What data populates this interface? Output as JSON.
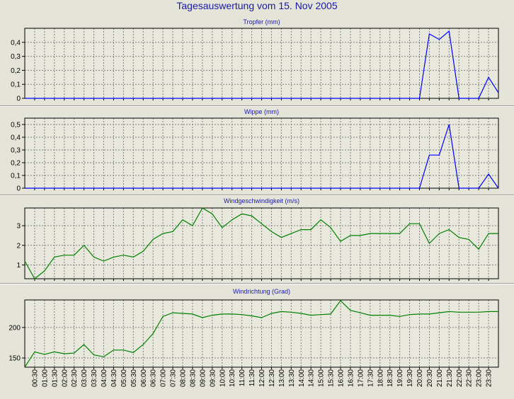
{
  "title": "Tagesauswertung vom 15. Nov 2005",
  "x_ticks": [
    "00:30",
    "01:00",
    "01:30",
    "02:00",
    "02:30",
    "03:00",
    "03:30",
    "04:00",
    "04:30",
    "05:00",
    "05:30",
    "06:00",
    "06:30",
    "07:00",
    "07:30",
    "08:00",
    "08:30",
    "09:00",
    "09:30",
    "10:00",
    "10:30",
    "11:00",
    "11:30",
    "12:00",
    "12:30",
    "13:00",
    "13:30",
    "14:00",
    "14:30",
    "15:00",
    "15:30",
    "16:00",
    "16:30",
    "17:00",
    "17:30",
    "18:00",
    "18:30",
    "19:00",
    "19:30",
    "20:00",
    "20:30",
    "21:00",
    "21:30",
    "22:00",
    "22:30",
    "23:00",
    "23:30"
  ],
  "chart_data": [
    {
      "type": "line",
      "title": "Tropfer (mm)",
      "color": "#0000ff",
      "ylim": [
        0,
        0.5
      ],
      "yticks": [
        0,
        0.1,
        0.2,
        0.3,
        0.4
      ],
      "ytick_labels": [
        "0",
        "0,1",
        "0,2",
        "0,3",
        "0,4"
      ],
      "x": [
        "00:00",
        "00:30",
        "01:00",
        "01:30",
        "02:00",
        "02:30",
        "03:00",
        "03:30",
        "04:00",
        "04:30",
        "05:00",
        "05:30",
        "06:00",
        "06:30",
        "07:00",
        "07:30",
        "08:00",
        "08:30",
        "09:00",
        "09:30",
        "10:00",
        "10:30",
        "11:00",
        "11:30",
        "12:00",
        "12:30",
        "13:00",
        "13:30",
        "14:00",
        "14:30",
        "15:00",
        "15:30",
        "16:00",
        "16:30",
        "17:00",
        "17:30",
        "18:00",
        "18:30",
        "19:00",
        "19:30",
        "20:00",
        "20:30",
        "21:00",
        "21:30",
        "22:00",
        "22:30",
        "23:00",
        "23:30",
        "24:00"
      ],
      "values": [
        0,
        0,
        0,
        0,
        0,
        0,
        0,
        0,
        0,
        0,
        0,
        0,
        0,
        0,
        0,
        0,
        0,
        0,
        0,
        0,
        0,
        0,
        0,
        0,
        0,
        0,
        0,
        0,
        0,
        0,
        0,
        0,
        0,
        0,
        0,
        0,
        0,
        0,
        0,
        0,
        0,
        0.46,
        0.42,
        0.48,
        0,
        0,
        0,
        0.15,
        0.04
      ]
    },
    {
      "type": "line",
      "title": "Wippe (mm)",
      "color": "#0000ff",
      "ylim": [
        0,
        0.55
      ],
      "yticks": [
        0,
        0.1,
        0.2,
        0.3,
        0.4,
        0.5
      ],
      "ytick_labels": [
        "0",
        "0,1",
        "0,2",
        "0,3",
        "0,4",
        "0,5"
      ],
      "x": [
        "00:00",
        "00:30",
        "01:00",
        "01:30",
        "02:00",
        "02:30",
        "03:00",
        "03:30",
        "04:00",
        "04:30",
        "05:00",
        "05:30",
        "06:00",
        "06:30",
        "07:00",
        "07:30",
        "08:00",
        "08:30",
        "09:00",
        "09:30",
        "10:00",
        "10:30",
        "11:00",
        "11:30",
        "12:00",
        "12:30",
        "13:00",
        "13:30",
        "14:00",
        "14:30",
        "15:00",
        "15:30",
        "16:00",
        "16:30",
        "17:00",
        "17:30",
        "18:00",
        "18:30",
        "19:00",
        "19:30",
        "20:00",
        "20:30",
        "21:00",
        "21:30",
        "22:00",
        "22:30",
        "23:00",
        "23:30",
        "24:00"
      ],
      "values": [
        0,
        0,
        0,
        0,
        0,
        0,
        0,
        0,
        0,
        0,
        0,
        0,
        0,
        0,
        0,
        0,
        0,
        0,
        0,
        0,
        0,
        0,
        0,
        0,
        0,
        0,
        0,
        0,
        0,
        0,
        0,
        0,
        0,
        0,
        0,
        0,
        0,
        0,
        0,
        0,
        0,
        0.26,
        0.26,
        0.5,
        0,
        0,
        0,
        0.11,
        0
      ]
    },
    {
      "type": "line",
      "title": "Windgeschwindigkeit (m/s)",
      "color": "#008000",
      "ylim": [
        0.3,
        3.9
      ],
      "yticks": [
        1,
        2,
        3
      ],
      "ytick_labels": [
        "1",
        "2",
        "3"
      ],
      "x": [
        "00:00",
        "00:30",
        "01:00",
        "01:30",
        "02:00",
        "02:30",
        "03:00",
        "03:30",
        "04:00",
        "04:30",
        "05:00",
        "05:30",
        "06:00",
        "06:30",
        "07:00",
        "07:30",
        "08:00",
        "08:30",
        "09:00",
        "09:30",
        "10:00",
        "10:30",
        "11:00",
        "11:30",
        "12:00",
        "12:30",
        "13:00",
        "13:30",
        "14:00",
        "14:30",
        "15:00",
        "15:30",
        "16:00",
        "16:30",
        "17:00",
        "17:30",
        "18:00",
        "18:30",
        "19:00",
        "19:30",
        "20:00",
        "20:30",
        "21:00",
        "21:30",
        "22:00",
        "22:30",
        "23:00",
        "23:30",
        "24:00"
      ],
      "values": [
        1.2,
        0.3,
        0.7,
        1.4,
        1.5,
        1.5,
        2.0,
        1.4,
        1.2,
        1.4,
        1.5,
        1.4,
        1.7,
        2.3,
        2.6,
        2.7,
        3.3,
        3.0,
        3.9,
        3.6,
        2.9,
        3.3,
        3.6,
        3.5,
        3.1,
        2.7,
        2.4,
        2.6,
        2.8,
        2.8,
        3.3,
        2.9,
        2.2,
        2.5,
        2.5,
        2.6,
        2.6,
        2.6,
        2.6,
        3.1,
        3.1,
        2.1,
        2.6,
        2.8,
        2.4,
        2.3,
        1.8,
        2.6,
        2.6
      ]
    },
    {
      "type": "line",
      "title": "Windrichtung (Grad)",
      "color": "#008000",
      "ylim": [
        135,
        245
      ],
      "yticks": [
        150,
        200
      ],
      "ytick_labels": [
        "150",
        "200"
      ],
      "x": [
        "00:00",
        "00:30",
        "01:00",
        "01:30",
        "02:00",
        "02:30",
        "03:00",
        "03:30",
        "04:00",
        "04:30",
        "05:00",
        "05:30",
        "06:00",
        "06:30",
        "07:00",
        "07:30",
        "08:00",
        "08:30",
        "09:00",
        "09:30",
        "10:00",
        "10:30",
        "11:00",
        "11:30",
        "12:00",
        "12:30",
        "13:00",
        "13:30",
        "14:00",
        "14:30",
        "15:00",
        "15:30",
        "16:00",
        "16:30",
        "17:00",
        "17:30",
        "18:00",
        "18:30",
        "19:00",
        "19:30",
        "20:00",
        "20:30",
        "21:00",
        "21:30",
        "22:00",
        "22:30",
        "23:00",
        "23:30",
        "24:00"
      ],
      "values": [
        135,
        160,
        156,
        160,
        157,
        158,
        172,
        155,
        152,
        163,
        163,
        159,
        172,
        190,
        218,
        224,
        223,
        222,
        216,
        220,
        222,
        222,
        221,
        219,
        216,
        223,
        226,
        225,
        223,
        220,
        221,
        222,
        244,
        228,
        224,
        220,
        220,
        220,
        218,
        221,
        222,
        222,
        224,
        226,
        225,
        225,
        225,
        226,
        226
      ]
    }
  ]
}
